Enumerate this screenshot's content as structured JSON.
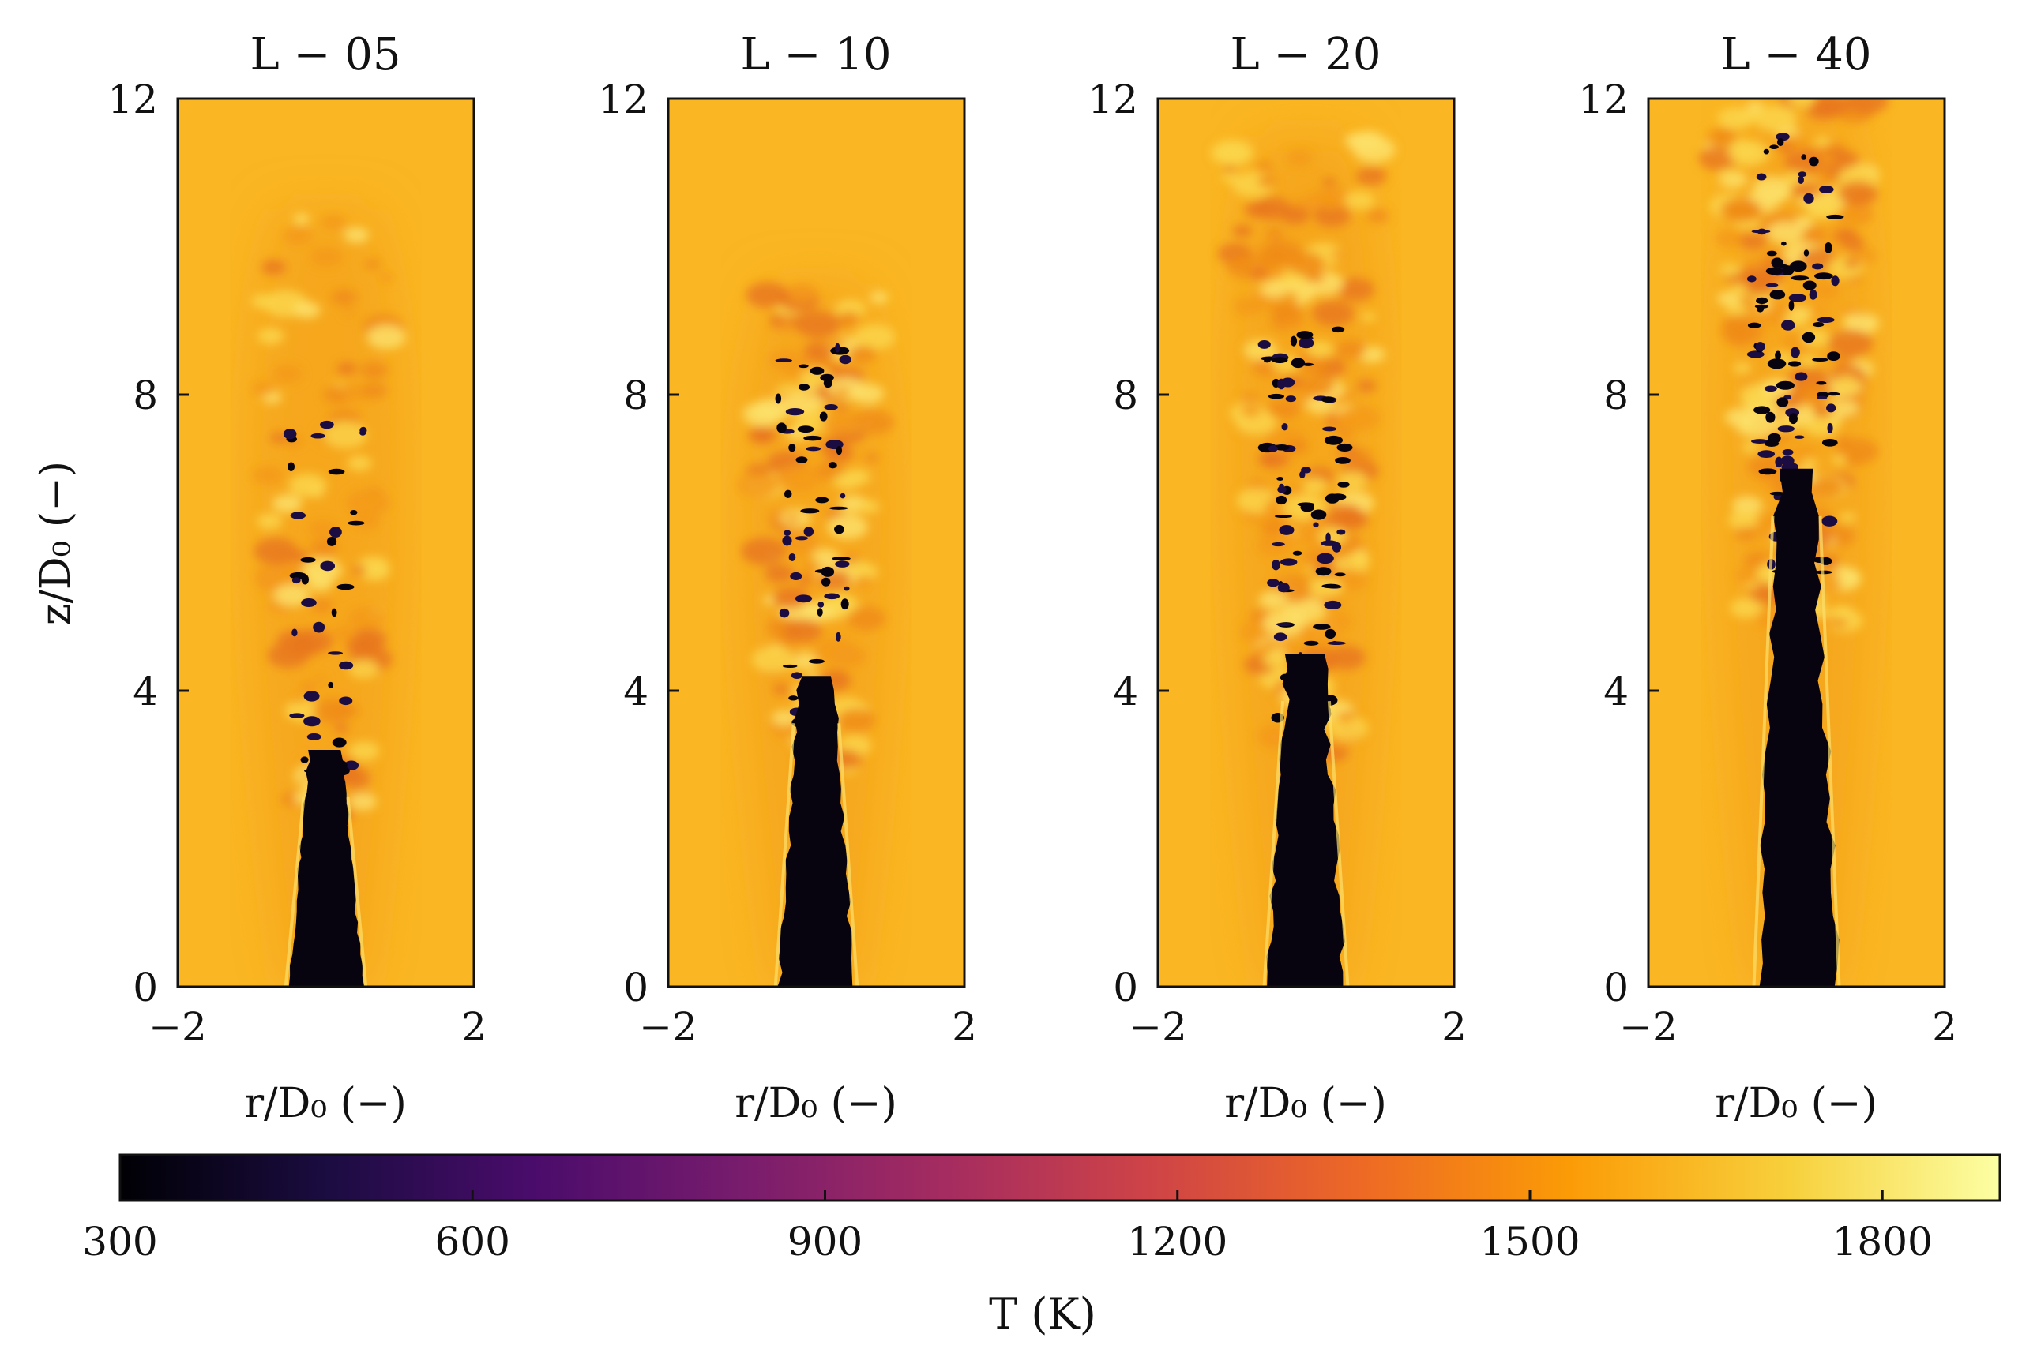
{
  "chart_data": {
    "type": "heatmap",
    "description_quantity": "temperature field",
    "panels": [
      {
        "title": "L − 05",
        "core_height": 3.2,
        "turbulence": 0.35,
        "plume_height": 10.5
      },
      {
        "title": "L − 10",
        "core_height": 4.2,
        "turbulence": 0.55,
        "plume_height": 9.5
      },
      {
        "title": "L − 20",
        "core_height": 4.5,
        "turbulence": 0.8,
        "plume_height": 11.5
      },
      {
        "title": "L − 40",
        "core_height": 7.0,
        "turbulence": 1.0,
        "plume_height": 12.0
      }
    ],
    "x": {
      "label": "r/D₀ (−)",
      "ticks": [
        "−2",
        "2"
      ],
      "range": [
        -2,
        2
      ]
    },
    "y": {
      "label": "z/D₀ (−)",
      "ticks": [
        "0",
        "4",
        "8",
        "12"
      ],
      "range": [
        0,
        12
      ]
    },
    "colorbar": {
      "label": "T (K)",
      "range": [
        300,
        1900
      ],
      "ticks": [
        "300",
        "600",
        "900",
        "1200",
        "1500",
        "1800"
      ],
      "colormap": "inferno",
      "stops": [
        "#000004",
        "#1b0c41",
        "#4a0c6b",
        "#781c6d",
        "#a52c60",
        "#cf4446",
        "#ed6925",
        "#fb9b06",
        "#f7d13d",
        "#fcffa4"
      ]
    },
    "ambient_color": "#fab623",
    "core_color": "#08040f"
  }
}
